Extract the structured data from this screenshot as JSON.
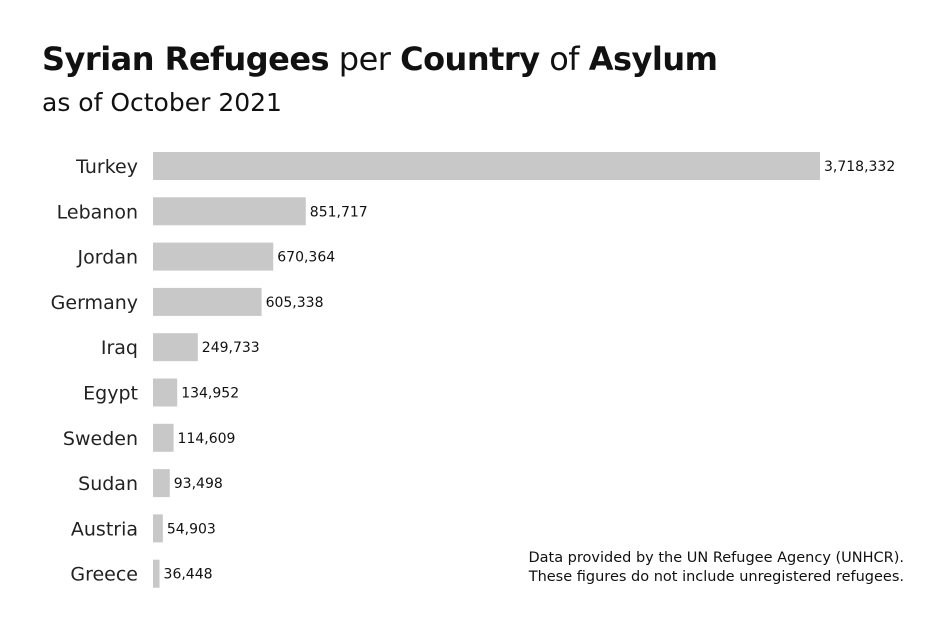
{
  "chart_data": {
    "type": "bar",
    "orientation": "horizontal",
    "title_parts": [
      {
        "text": "Syrian Refugees",
        "bold": true
      },
      {
        "text": " per ",
        "bold": false
      },
      {
        "text": "Country",
        "bold": true
      },
      {
        "text": " of ",
        "bold": false
      },
      {
        "text": "Asylum",
        "bold": true
      }
    ],
    "subtitle": "as of October 2021",
    "categories": [
      "Turkey",
      "Lebanon",
      "Jordan",
      "Germany",
      "Iraq",
      "Egypt",
      "Sweden",
      "Sudan",
      "Austria",
      "Greece"
    ],
    "values": [
      3718332,
      851717,
      670364,
      605338,
      249733,
      134952,
      114609,
      93498,
      54903,
      36448
    ],
    "value_labels": [
      "3,718,332",
      "851,717",
      "670,364",
      "605,338",
      "249,733",
      "134,952",
      "114,609",
      "93,498",
      "54,903",
      "36,448"
    ],
    "xlim": [
      0,
      3718332
    ],
    "grid": false,
    "bar_color": "#c8c8c8",
    "note": [
      "Data provided by the UN Refugee Agency (UNHCR).",
      "These figures do not include unregistered refugees."
    ]
  }
}
